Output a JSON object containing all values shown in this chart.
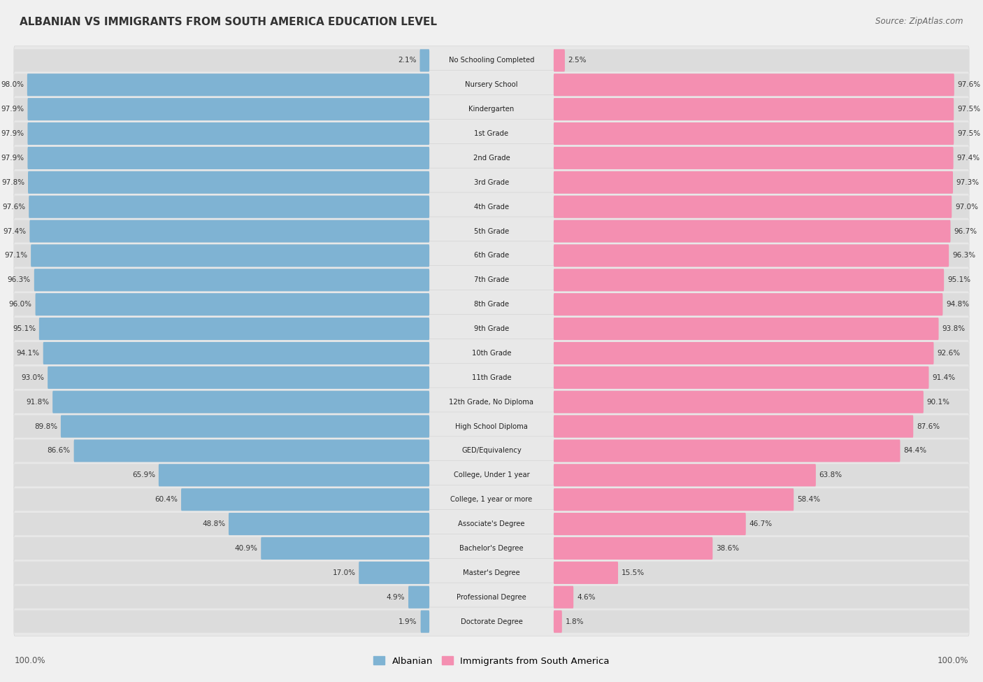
{
  "title": "ALBANIAN VS IMMIGRANTS FROM SOUTH AMERICA EDUCATION LEVEL",
  "source": "Source: ZipAtlas.com",
  "categories": [
    "No Schooling Completed",
    "Nursery School",
    "Kindergarten",
    "1st Grade",
    "2nd Grade",
    "3rd Grade",
    "4th Grade",
    "5th Grade",
    "6th Grade",
    "7th Grade",
    "8th Grade",
    "9th Grade",
    "10th Grade",
    "11th Grade",
    "12th Grade, No Diploma",
    "High School Diploma",
    "GED/Equivalency",
    "College, Under 1 year",
    "College, 1 year or more",
    "Associate's Degree",
    "Bachelor's Degree",
    "Master's Degree",
    "Professional Degree",
    "Doctorate Degree"
  ],
  "albanian": [
    2.1,
    98.0,
    97.9,
    97.9,
    97.9,
    97.8,
    97.6,
    97.4,
    97.1,
    96.3,
    96.0,
    95.1,
    94.1,
    93.0,
    91.8,
    89.8,
    86.6,
    65.9,
    60.4,
    48.8,
    40.9,
    17.0,
    4.9,
    1.9
  ],
  "immigrants": [
    2.5,
    97.6,
    97.5,
    97.5,
    97.4,
    97.3,
    97.0,
    96.7,
    96.3,
    95.1,
    94.8,
    93.8,
    92.6,
    91.4,
    90.1,
    87.6,
    84.4,
    63.8,
    58.4,
    46.7,
    38.6,
    15.5,
    4.6,
    1.8
  ],
  "albanian_color": "#7fb3d3",
  "immigrant_color": "#f48fb1",
  "background_color": "#f0f0f0",
  "row_bg_color": "#e8e8e8",
  "bar_bg_color": "#e0e0e0",
  "legend_labels": [
    "Albanian",
    "Immigrants from South America"
  ]
}
